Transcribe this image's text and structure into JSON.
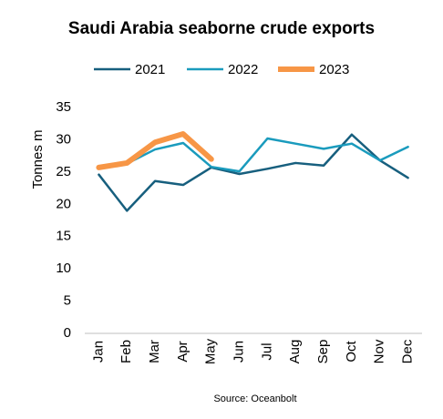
{
  "chart_data": {
    "type": "line",
    "title": "Saudi Arabia seaborne crude exports",
    "y_label": "Tonnes m",
    "source": "Source: Oceanbolt",
    "categories": [
      "Jan",
      "Feb",
      "Mar",
      "Apr",
      "May",
      "Jun",
      "Jul",
      "Aug",
      "Sep",
      "Oct",
      "Nov",
      "Dec"
    ],
    "series": [
      {
        "name": "2021",
        "color": "#175f7e",
        "width": 2.5,
        "values": [
          24.6,
          19.0,
          23.6,
          23.0,
          25.7,
          24.7,
          25.5,
          26.4,
          26.0,
          30.8,
          26.8,
          24.1
        ]
      },
      {
        "name": "2022",
        "color": "#1a9bbd",
        "width": 2.5,
        "values": [
          25.7,
          26.3,
          28.5,
          29.5,
          25.8,
          25.1,
          30.2,
          29.4,
          28.6,
          29.4,
          26.8,
          28.9
        ]
      },
      {
        "name": "2023",
        "color": "#f79646",
        "width": 6,
        "values": [
          25.7,
          26.4,
          29.6,
          30.9,
          27.0,
          null,
          null,
          null,
          null,
          null,
          null,
          null
        ]
      }
    ],
    "ylim": [
      0,
      35
    ],
    "yticks": [
      0,
      5,
      10,
      15,
      20,
      25,
      30,
      35
    ],
    "grid": false
  }
}
